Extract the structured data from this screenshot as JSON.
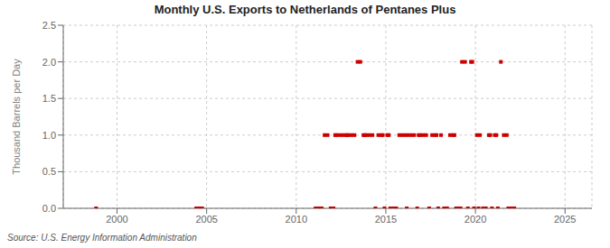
{
  "chart_data": {
    "type": "scatter",
    "title": "Monthly U.S. Exports to Netherlands of Pentanes Plus",
    "ylabel": "Thousand Barrels per Day",
    "annotation": "Source: U.S. Energy Information Administration",
    "color": "#cc0000",
    "marker": "square",
    "grid": true,
    "xlim": [
      1997.0,
      2026.5
    ],
    "ylim": [
      0.0,
      2.5
    ],
    "xticks": [
      2000,
      2005,
      2010,
      2015,
      2020,
      2025
    ],
    "yticks": [
      {
        "value": 0.0,
        "label": "0.0"
      },
      0.5,
      {
        "value": 1.0,
        "label": "1.0"
      },
      1.5,
      {
        "value": 2.0,
        "label": "2.0"
      },
      2.5
    ],
    "x": [
      1998.83,
      2004.42,
      2004.58,
      2004.75,
      2011.08,
      2011.17,
      2011.25,
      2011.42,
      2011.58,
      2011.75,
      2011.92,
      2012.08,
      2012.17,
      2012.25,
      2012.42,
      2012.58,
      2012.75,
      2012.83,
      2012.92,
      2013.08,
      2013.25,
      2013.42,
      2013.58,
      2013.75,
      2013.83,
      2013.92,
      2014.08,
      2014.25,
      2014.42,
      2014.58,
      2014.75,
      2014.83,
      2014.92,
      2015.08,
      2015.17,
      2015.25,
      2015.42,
      2015.58,
      2015.75,
      2015.92,
      2016.08,
      2016.17,
      2016.25,
      2016.42,
      2016.58,
      2016.75,
      2016.83,
      2016.92,
      2017.08,
      2017.25,
      2017.42,
      2017.58,
      2017.75,
      2017.83,
      2017.92,
      2018.08,
      2018.25,
      2018.42,
      2018.58,
      2018.75,
      2018.83,
      2018.92,
      2019.08,
      2019.17,
      2019.25,
      2019.42,
      2019.58,
      2019.75,
      2019.83,
      2019.92,
      2020.08,
      2020.17,
      2020.25,
      2020.42,
      2020.58,
      2020.75,
      2020.83,
      2020.92,
      2021.08,
      2021.17,
      2021.25,
      2021.42,
      2021.58,
      2021.75,
      2021.83,
      2021.92,
      2022.08,
      2022.17
    ],
    "values": [
      0.0,
      0.0,
      0.0,
      0.0,
      0.0,
      0.0,
      0.0,
      0.0,
      1.0,
      1.0,
      0.0,
      0.0,
      1.0,
      1.0,
      1.0,
      1.0,
      1.0,
      1.0,
      1.0,
      1.0,
      1.0,
      2.0,
      2.0,
      1.0,
      1.0,
      1.0,
      1.0,
      1.0,
      0.0,
      1.0,
      1.0,
      1.0,
      0.0,
      1.0,
      1.0,
      0.0,
      0.0,
      0.0,
      1.0,
      1.0,
      1.0,
      0.0,
      1.0,
      1.0,
      1.0,
      0.0,
      1.0,
      1.0,
      1.0,
      1.0,
      0.0,
      1.0,
      1.0,
      1.0,
      0.0,
      1.0,
      0.0,
      0.0,
      1.0,
      1.0,
      1.0,
      0.0,
      0.0,
      0.0,
      2.0,
      2.0,
      0.0,
      2.0,
      2.0,
      0.0,
      1.0,
      0.0,
      1.0,
      0.0,
      0.0,
      1.0,
      1.0,
      0.0,
      1.0,
      1.0,
      0.0,
      2.0,
      1.0,
      1.0,
      0.0,
      0.0,
      0.0,
      0.0
    ]
  }
}
